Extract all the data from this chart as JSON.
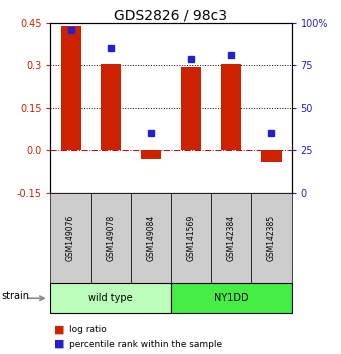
{
  "title": "GDS2826 / 98c3",
  "samples": [
    "GSM149076",
    "GSM149078",
    "GSM149084",
    "GSM141569",
    "GSM142384",
    "GSM142385"
  ],
  "log_ratios": [
    0.44,
    0.305,
    -0.03,
    0.295,
    0.305,
    -0.04
  ],
  "percentile_ranks": [
    96,
    85,
    35,
    79,
    81,
    35
  ],
  "groups": [
    {
      "label": "wild type",
      "color": "#bbffbb",
      "n": 3
    },
    {
      "label": "NY1DD",
      "color": "#44ee44",
      "n": 3
    }
  ],
  "bar_color": "#cc2200",
  "dot_color": "#2222cc",
  "ylim_left": [
    -0.15,
    0.45
  ],
  "ylim_right": [
    0,
    100
  ],
  "yticks_left": [
    -0.15,
    0.0,
    0.15,
    0.3,
    0.45
  ],
  "yticks_right": [
    0,
    25,
    50,
    75,
    100
  ],
  "hlines": [
    0.0,
    0.15,
    0.3
  ],
  "hline_styles": [
    "dashdot",
    "dotted",
    "dotted"
  ],
  "hline_colors": [
    "#cc0000",
    "#000000",
    "#000000"
  ],
  "bg_color": "#ffffff",
  "tick_fontsize": 7,
  "title_fontsize": 10,
  "sample_fontsize": 5.5,
  "group_fontsize": 7,
  "legend_fontsize": 6.5,
  "strain_fontsize": 7
}
